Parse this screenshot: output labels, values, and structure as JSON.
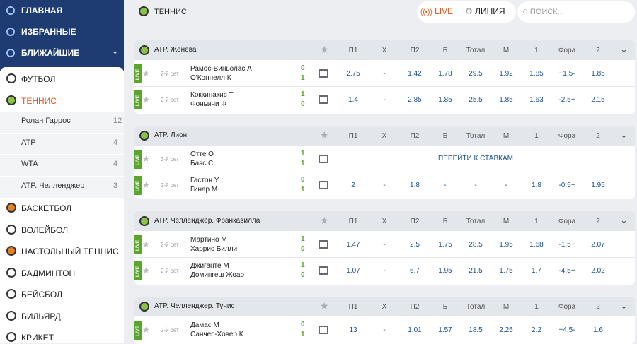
{
  "sidebar": {
    "nav": [
      "ГЛАВНАЯ",
      "ИЗБРАННЫЕ",
      "БЛИЖАЙШИЕ"
    ],
    "sports": [
      {
        "name": "ФУТБОЛ"
      },
      {
        "name": "ТЕННИС",
        "sub": [
          {
            "name": "Ролан Гаррос",
            "count": 12
          },
          {
            "name": "ATP",
            "count": 4
          },
          {
            "name": "WTA",
            "count": 4
          },
          {
            "name": "ATP. Челленджер",
            "count": 3
          }
        ]
      },
      {
        "name": "БАСКЕТБОЛ"
      },
      {
        "name": "ВОЛЕЙБОЛ"
      },
      {
        "name": "НАСТОЛЬНЫЙ ТЕННИС"
      },
      {
        "name": "БАДМИНТОН"
      },
      {
        "name": "БЕЙСБОЛ"
      },
      {
        "name": "БИЛЬЯРД"
      },
      {
        "name": "КРИКЕТ"
      }
    ]
  },
  "topbar": {
    "title": "ТЕННИС",
    "live": "LIVE",
    "line": "ЛИНИЯ",
    "search_placeholder": "ПОИСК..."
  },
  "columns": [
    "П1",
    "X",
    "П2",
    "Б",
    "Тотал",
    "М",
    "1",
    "Фора",
    "2"
  ],
  "leagues": [
    {
      "name": "ATP. Женева",
      "matches": [
        {
          "badge": "LIVE",
          "period": "2-й сет",
          "players": [
            "Рамос-Виньолас А",
            "О'Коннелл К"
          ],
          "scores": [
            0,
            1
          ],
          "odds": [
            "2.75",
            "-",
            "1.42",
            "1.78",
            "29.5",
            "1.92",
            "1.85",
            "+1.5-",
            "1.85"
          ]
        },
        {
          "badge": "LIVE",
          "period": "2-й сет",
          "players": [
            "Коккинакис Т",
            "Фоньини Ф"
          ],
          "scores": [
            1,
            0
          ],
          "odds": [
            "1.4",
            "-",
            "2.85",
            "1.85",
            "25.5",
            "1.85",
            "1.63",
            "-2.5+",
            "2.15"
          ]
        }
      ]
    },
    {
      "name": "ATP. Лион",
      "matches": [
        {
          "badge": "LIVE",
          "period": "3-й сет",
          "players": [
            "Отте О",
            "Баэс С"
          ],
          "scores": [
            1,
            1
          ],
          "link": "ПЕРЕЙТИ К СТАВКАМ"
        },
        {
          "badge": "LIVE",
          "period": "2-й сет",
          "players": [
            "Гастон У",
            "Гинар М"
          ],
          "scores": [
            0,
            1
          ],
          "odds": [
            "2",
            "-",
            "1.8",
            "-",
            "-",
            "-",
            "1.8",
            "-0.5+",
            "1.95"
          ]
        }
      ]
    },
    {
      "name": "ATP. Челленджер. Франкавилла",
      "matches": [
        {
          "badge": "LIVE",
          "period": "2-й сет",
          "players": [
            "Мартино М",
            "Харрис Билли"
          ],
          "scores": [
            1,
            0
          ],
          "odds": [
            "1.47",
            "-",
            "2.5",
            "1.75",
            "28.5",
            "1.95",
            "1.68",
            "-1.5+",
            "2.07"
          ]
        },
        {
          "badge": "LIVE",
          "period": "2-й сет",
          "players": [
            "Джиганте М",
            "Домингеш Жоао"
          ],
          "scores": [
            1,
            0
          ],
          "odds": [
            "1.07",
            "-",
            "6.7",
            "1.95",
            "21.5",
            "1.75",
            "1.7",
            "-4.5+",
            "2.02"
          ]
        }
      ]
    },
    {
      "name": "ATP. Челленджер. Тунис",
      "matches": [
        {
          "badge": "LIVE",
          "period": "2-й сет",
          "players": [
            "Дамас М",
            "Санчес-Ховер К"
          ],
          "scores": [
            0,
            1
          ],
          "odds": [
            "13",
            "-",
            "1.01",
            "1.57",
            "18.5",
            "2.25",
            "2.2",
            "+4.5-",
            "1.6"
          ]
        }
      ]
    }
  ]
}
